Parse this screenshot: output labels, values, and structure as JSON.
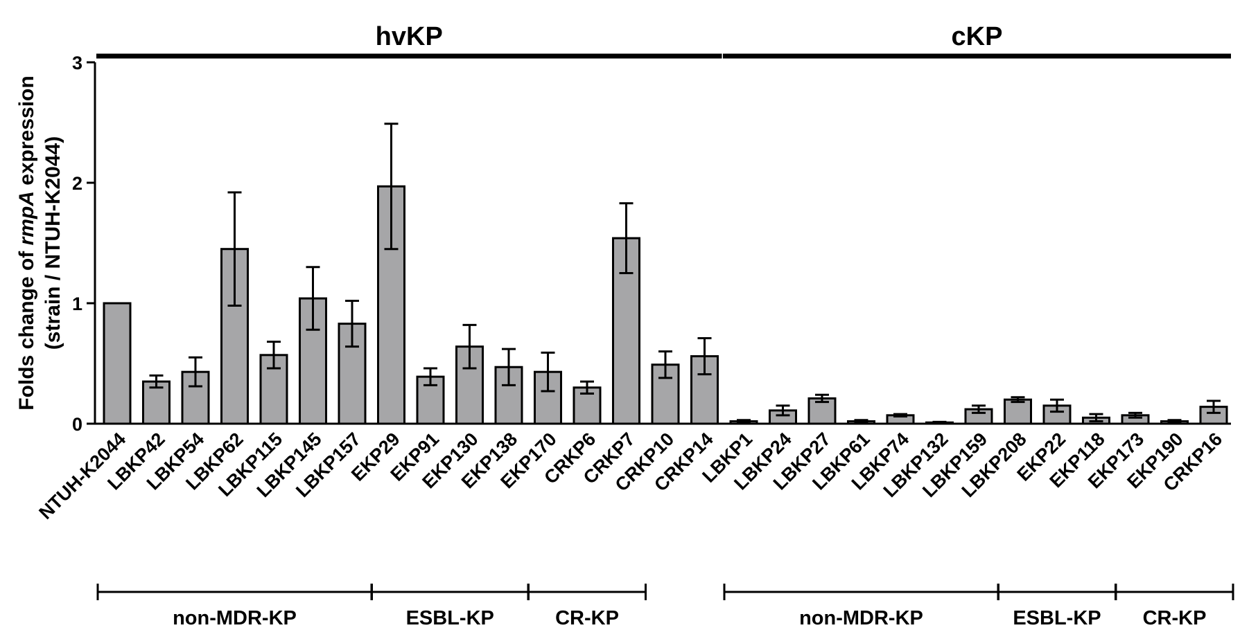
{
  "chart_data": {
    "type": "bar",
    "ylabel_line1_prefix": "Folds change of ",
    "ylabel_line1_italic": "rmpA",
    "ylabel_line1_suffix": " expression",
    "ylabel_line2": "(strain / NTUH-K2044)",
    "ylim": [
      0,
      3
    ],
    "yticks": [
      "0",
      "1",
      "2",
      "3"
    ],
    "categories": [
      "NTUH-K2044",
      "LBKP42",
      "LBKP54",
      "LBKP62",
      "LBKP115",
      "LBKP145",
      "LBKP157",
      "EKP29",
      "EKP91",
      "EKP130",
      "EKP138",
      "EKP170",
      "CRKP6",
      "CRKP7",
      "CRKP10",
      "CRKP14",
      "LBKP1",
      "LBKP24",
      "LBKP27",
      "LBKP61",
      "LBKP74",
      "LBKP132",
      "LBKP159",
      "LBKP208",
      "EKP22",
      "EKP118",
      "EKP173",
      "EKP190",
      "CRKP16"
    ],
    "values": [
      1.0,
      0.35,
      0.43,
      1.45,
      0.57,
      1.04,
      0.83,
      1.97,
      0.39,
      0.64,
      0.47,
      0.43,
      0.3,
      1.54,
      0.49,
      0.56,
      0.02,
      0.11,
      0.21,
      0.02,
      0.07,
      0.01,
      0.12,
      0.2,
      0.15,
      0.05,
      0.07,
      0.02,
      0.14
    ],
    "errors": [
      0,
      0.05,
      0.12,
      0.47,
      0.11,
      0.26,
      0.19,
      0.52,
      0.07,
      0.18,
      0.15,
      0.16,
      0.05,
      0.29,
      0.11,
      0.15,
      0.01,
      0.04,
      0.03,
      0.01,
      0.01,
      0.005,
      0.03,
      0.02,
      0.05,
      0.03,
      0.02,
      0.01,
      0.05
    ],
    "bar_color": "#a6a6a8",
    "group_labels": [
      {
        "label": "hvKP",
        "from": 0,
        "to": 15
      },
      {
        "label": "cKP",
        "from": 16,
        "to": 28
      }
    ],
    "subgroups": [
      {
        "label": "non-MDR-KP",
        "from": 0,
        "to": 6
      },
      {
        "label": "ESBL-KP",
        "from": 7,
        "to": 10
      },
      {
        "label": "CR-KP",
        "from": 11,
        "to": 13
      },
      {
        "label": "non-MDR-KP",
        "from": 16,
        "to": 22
      },
      {
        "label": "ESBL-KP",
        "from": 23,
        "to": 25
      },
      {
        "label": "CR-KP",
        "from": 26,
        "to": 28
      }
    ]
  }
}
